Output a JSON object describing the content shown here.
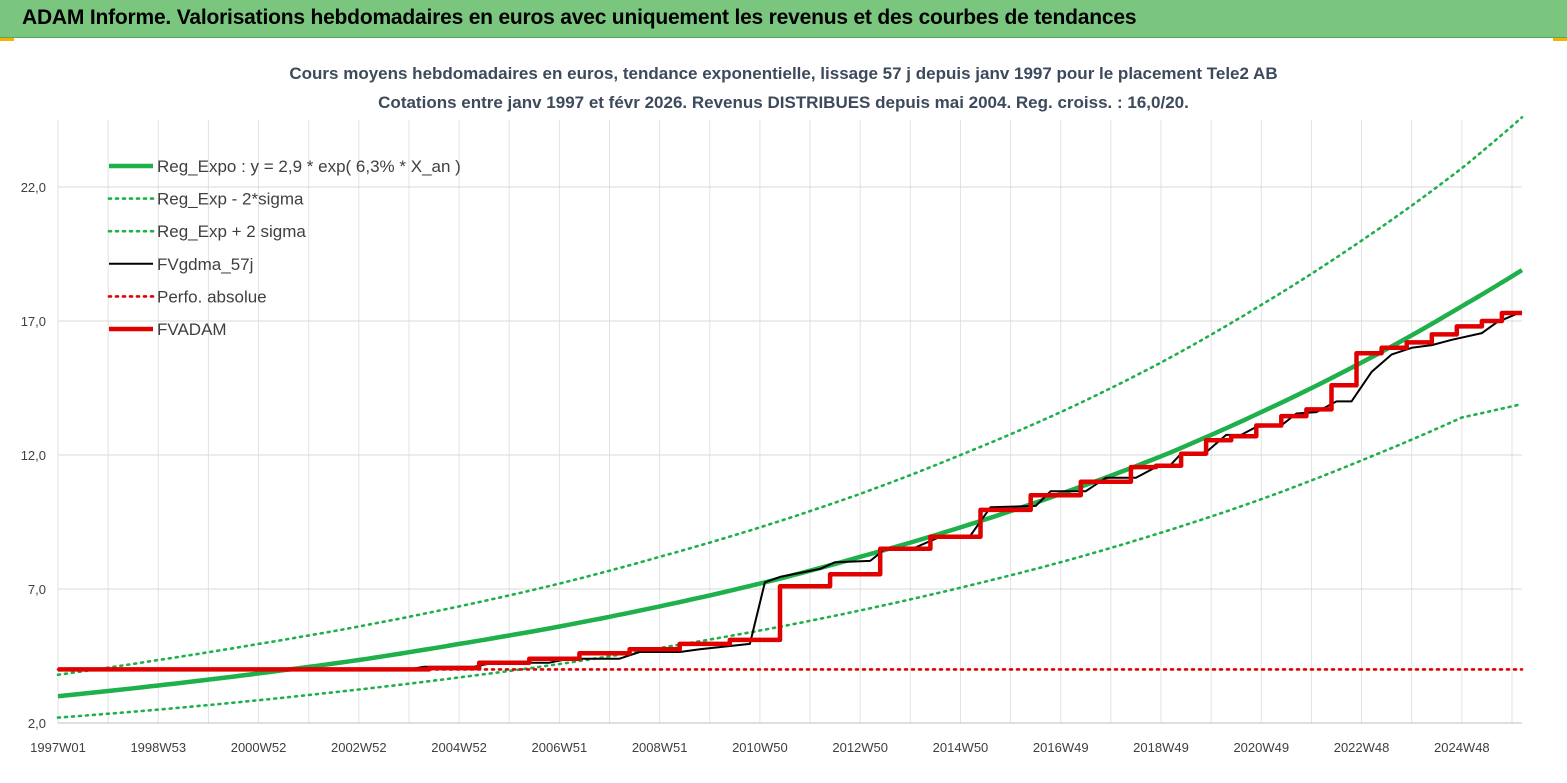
{
  "banner": {
    "title": "ADAM Informe. Valorisations hebdomadaires en euros avec uniquement les revenus et des courbes de tendances"
  },
  "chart_data": {
    "type": "line",
    "title": "Cours moyens  hebdomadaires en euros, tendance exponentielle, lissage 57 j depuis janv 1997 pour le placement Tele2 AB",
    "subtitle": "Cotations entre janv 1997 et févr 2026. Revenus DISTRIBUES depuis mai 2004. Reg. croiss. : 16,0/20.",
    "xlabel": "",
    "ylabel": "",
    "ylim": [
      2.0,
      24.5
    ],
    "xlim": [
      1997.0,
      2026.2
    ],
    "yticks": [
      2.0,
      7.0,
      12.0,
      17.0,
      22.0
    ],
    "ytick_labels": [
      "2,0",
      "7,0",
      "12,0",
      "17,0",
      "22,0"
    ],
    "xticks": [
      1997.0,
      1999.0,
      2001.0,
      2003.0,
      2005.0,
      2007.0,
      2009.0,
      2011.0,
      2013.0,
      2015.0,
      2017.0,
      2019.0,
      2021.0,
      2023.0,
      2025.0
    ],
    "xtick_labels": [
      "1997W01",
      "1998W53",
      "2000W52",
      "2002W52",
      "2004W52",
      "2006W51",
      "2008W51",
      "2010W50",
      "2012W50",
      "2014W50",
      "2016W49",
      "2018W49",
      "2020W49",
      "2022W48",
      "2024W48"
    ],
    "grid": true,
    "legend_position": "top-left",
    "series": [
      {
        "name": "Reg_Expo : y = 2,9 * exp( 6,3% *  X_an )",
        "color": "#1fb04c",
        "style": "solid-thick",
        "x": [
          1997.0,
          1999.0,
          2001.0,
          2003.0,
          2005.0,
          2007.0,
          2009.0,
          2011.0,
          2013.0,
          2015.0,
          2017.0,
          2019.0,
          2021.0,
          2023.0,
          2025.0,
          2026.2
        ],
        "y": [
          3.0,
          3.4,
          3.85,
          4.35,
          4.95,
          5.6,
          6.35,
          7.2,
          8.2,
          9.3,
          10.55,
          11.95,
          13.6,
          15.45,
          17.55,
          18.9
        ]
      },
      {
        "name": "Reg_Exp - 2*sigma",
        "color": "#1fb04c",
        "style": "dotted",
        "x": [
          1997.0,
          1999.0,
          2001.0,
          2003.0,
          2005.0,
          2007.0,
          2009.0,
          2011.0,
          2013.0,
          2015.0,
          2017.0,
          2019.0,
          2021.0,
          2023.0,
          2025.0,
          2026.2
        ],
        "y": [
          2.2,
          2.5,
          2.85,
          3.25,
          3.7,
          4.2,
          4.8,
          5.45,
          6.2,
          7.05,
          8.0,
          9.1,
          10.35,
          11.8,
          13.4,
          13.9
        ]
      },
      {
        "name": "Reg_Exp + 2 sigma",
        "color": "#1fb04c",
        "style": "dotted",
        "x": [
          1997.0,
          1999.0,
          2001.0,
          2003.0,
          2005.0,
          2007.0,
          2009.0,
          2011.0,
          2013.0,
          2015.0,
          2017.0,
          2019.0,
          2021.0,
          2023.0,
          2025.0,
          2026.2
        ],
        "y": [
          3.8,
          4.35,
          4.95,
          5.6,
          6.35,
          7.2,
          8.2,
          9.3,
          10.55,
          12.0,
          13.6,
          15.45,
          17.6,
          20.0,
          22.7,
          24.6
        ]
      },
      {
        "name": "FVgdma_57j",
        "color": "#000000",
        "style": "solid",
        "x": [
          1997.0,
          2004.0,
          2004.3,
          2005.3,
          2005.7,
          2006.8,
          2007.2,
          2008.2,
          2008.6,
          2009.4,
          2009.8,
          2010.8,
          2011.1,
          2011.4,
          2012.2,
          2012.5,
          2013.2,
          2013.5,
          2014.1,
          2014.6,
          2015.2,
          2015.6,
          2016.5,
          2016.8,
          2017.5,
          2017.9,
          2018.5,
          2018.9,
          2019.2,
          2019.4,
          2019.9,
          2020.3,
          2020.6,
          2020.9,
          2021.4,
          2021.7,
          2022.1,
          2022.5,
          2022.8,
          2023.2,
          2023.6,
          2024.0,
          2024.4,
          2024.8,
          2025.4,
          2025.7,
          2026.2
        ],
        "y": [
          4.0,
          4.0,
          4.1,
          4.1,
          4.25,
          4.25,
          4.4,
          4.4,
          4.65,
          4.65,
          4.75,
          4.95,
          7.25,
          7.45,
          7.75,
          8.0,
          8.05,
          8.5,
          8.55,
          8.95,
          9.0,
          10.05,
          10.1,
          10.65,
          10.65,
          11.15,
          11.15,
          11.55,
          11.65,
          12.05,
          12.1,
          12.75,
          12.75,
          13.05,
          13.1,
          13.55,
          13.6,
          14.0,
          14.0,
          15.1,
          15.75,
          16.0,
          16.1,
          16.3,
          16.55,
          16.95,
          17.35
        ]
      },
      {
        "name": "Perfo. absolue",
        "color": "#e00000",
        "style": "dotted",
        "x": [
          1997.0,
          2026.2
        ],
        "y": [
          4.0,
          4.0
        ]
      },
      {
        "name": "FVADAM",
        "color": "#e00000",
        "style": "solid-thick",
        "x": [
          1997.0,
          2004.4,
          2004.4,
          2005.4,
          2005.4,
          2006.4,
          2006.4,
          2007.4,
          2007.4,
          2008.4,
          2008.4,
          2009.4,
          2009.4,
          2010.4,
          2010.4,
          2011.4,
          2011.4,
          2012.4,
          2012.4,
          2013.4,
          2013.4,
          2014.4,
          2014.4,
          2015.4,
          2015.4,
          2016.4,
          2016.4,
          2017.4,
          2017.4,
          2018.4,
          2018.4,
          2018.9,
          2018.9,
          2019.4,
          2019.4,
          2019.9,
          2019.9,
          2020.4,
          2020.4,
          2020.9,
          2020.9,
          2021.4,
          2021.4,
          2021.9,
          2021.9,
          2022.4,
          2022.4,
          2022.9,
          2022.9,
          2023.4,
          2023.4,
          2023.9,
          2023.9,
          2024.4,
          2024.4,
          2024.9,
          2024.9,
          2025.4,
          2025.4,
          2025.8,
          2025.8,
          2026.2
        ],
        "y": [
          4.0,
          4.0,
          4.05,
          4.05,
          4.25,
          4.25,
          4.4,
          4.4,
          4.6,
          4.6,
          4.75,
          4.75,
          4.95,
          4.95,
          5.1,
          5.1,
          7.1,
          7.1,
          7.55,
          7.55,
          8.5,
          8.5,
          8.95,
          8.95,
          9.95,
          9.95,
          10.5,
          10.5,
          11.0,
          11.0,
          11.55,
          11.55,
          11.6,
          11.6,
          12.05,
          12.05,
          12.55,
          12.55,
          12.7,
          12.7,
          13.1,
          13.1,
          13.45,
          13.45,
          13.7,
          13.7,
          14.6,
          14.6,
          15.8,
          15.8,
          16.0,
          16.0,
          16.2,
          16.2,
          16.5,
          16.5,
          16.8,
          16.8,
          17.0,
          17.0,
          17.3,
          17.3
        ]
      }
    ]
  }
}
